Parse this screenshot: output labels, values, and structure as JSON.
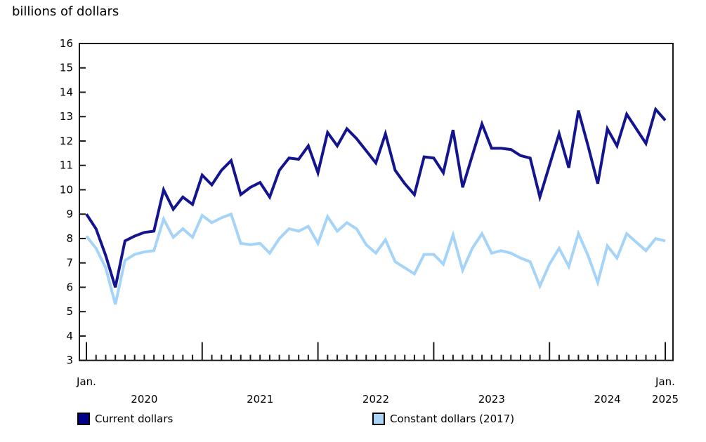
{
  "title": "billions of dollars",
  "colors": {
    "current_line": "#14148f",
    "constant_line": "#a6d4f8",
    "legend_current_fill": "#00008b",
    "legend_constant_fill": "#a8d4f8",
    "axis": "#1a1a1a",
    "text": "#000000"
  },
  "legend": {
    "current_label": "Current dollars",
    "constant_label": "Constant dollars (2017)"
  },
  "chart_data": {
    "type": "line",
    "title": "billions of dollars",
    "ylabel": "billions of dollars",
    "xlabel": "",
    "ylim": [
      3,
      16
    ],
    "y_tick_step": 1,
    "grid": false,
    "legend_position": "bottom",
    "x_unit": "month",
    "x_start": "2020-01",
    "x_end": "2025-01",
    "months_total": 61,
    "x_labels": [
      {
        "text": "Jan.",
        "month": 0,
        "row": 1
      },
      {
        "text": "2020",
        "month": 6,
        "row": 2
      },
      {
        "text": "2021",
        "month": 18,
        "row": 2
      },
      {
        "text": "2022",
        "month": 30,
        "row": 2
      },
      {
        "text": "2023",
        "month": 42,
        "row": 2
      },
      {
        "text": "2024",
        "month": 54,
        "row": 2
      },
      {
        "text": "Jan.",
        "month": 60,
        "row": 1
      },
      {
        "text": "2025",
        "month": 60,
        "row": 2
      }
    ],
    "series": [
      {
        "name": "Current dollars",
        "color": "#14148f",
        "values": [
          9.0,
          8.4,
          7.3,
          6.0,
          7.9,
          8.1,
          8.25,
          8.3,
          10.0,
          9.2,
          9.7,
          9.4,
          10.6,
          10.2,
          10.8,
          11.2,
          9.8,
          10.1,
          10.3,
          9.7,
          10.8,
          11.3,
          11.25,
          11.8,
          10.7,
          12.35,
          11.8,
          12.5,
          12.1,
          11.6,
          11.1,
          12.3,
          10.8,
          10.25,
          9.8,
          11.35,
          11.3,
          10.7,
          12.45,
          10.1,
          11.4,
          12.7,
          11.7,
          11.7,
          11.65,
          11.4,
          11.3,
          9.7,
          11.0,
          12.3,
          10.9,
          13.25,
          11.8,
          10.25,
          12.5,
          11.8,
          13.1,
          12.5,
          11.9,
          13.3,
          12.85
        ]
      },
      {
        "name": "Constant dollars (2017)",
        "color": "#a6d4f8",
        "values": [
          8.1,
          7.6,
          6.8,
          5.3,
          7.1,
          7.35,
          7.45,
          7.5,
          8.8,
          8.05,
          8.4,
          8.05,
          8.95,
          8.65,
          8.85,
          9.0,
          7.8,
          7.75,
          7.8,
          7.4,
          8.0,
          8.4,
          8.3,
          8.5,
          7.8,
          8.9,
          8.3,
          8.65,
          8.4,
          7.75,
          7.4,
          7.95,
          7.05,
          6.8,
          6.55,
          7.35,
          7.35,
          6.95,
          8.15,
          6.7,
          7.6,
          8.2,
          7.4,
          7.5,
          7.4,
          7.2,
          7.05,
          6.05,
          6.95,
          7.6,
          6.85,
          8.2,
          7.3,
          6.2,
          7.7,
          7.2,
          8.2,
          7.85,
          7.5,
          8.0,
          7.9
        ]
      }
    ]
  }
}
